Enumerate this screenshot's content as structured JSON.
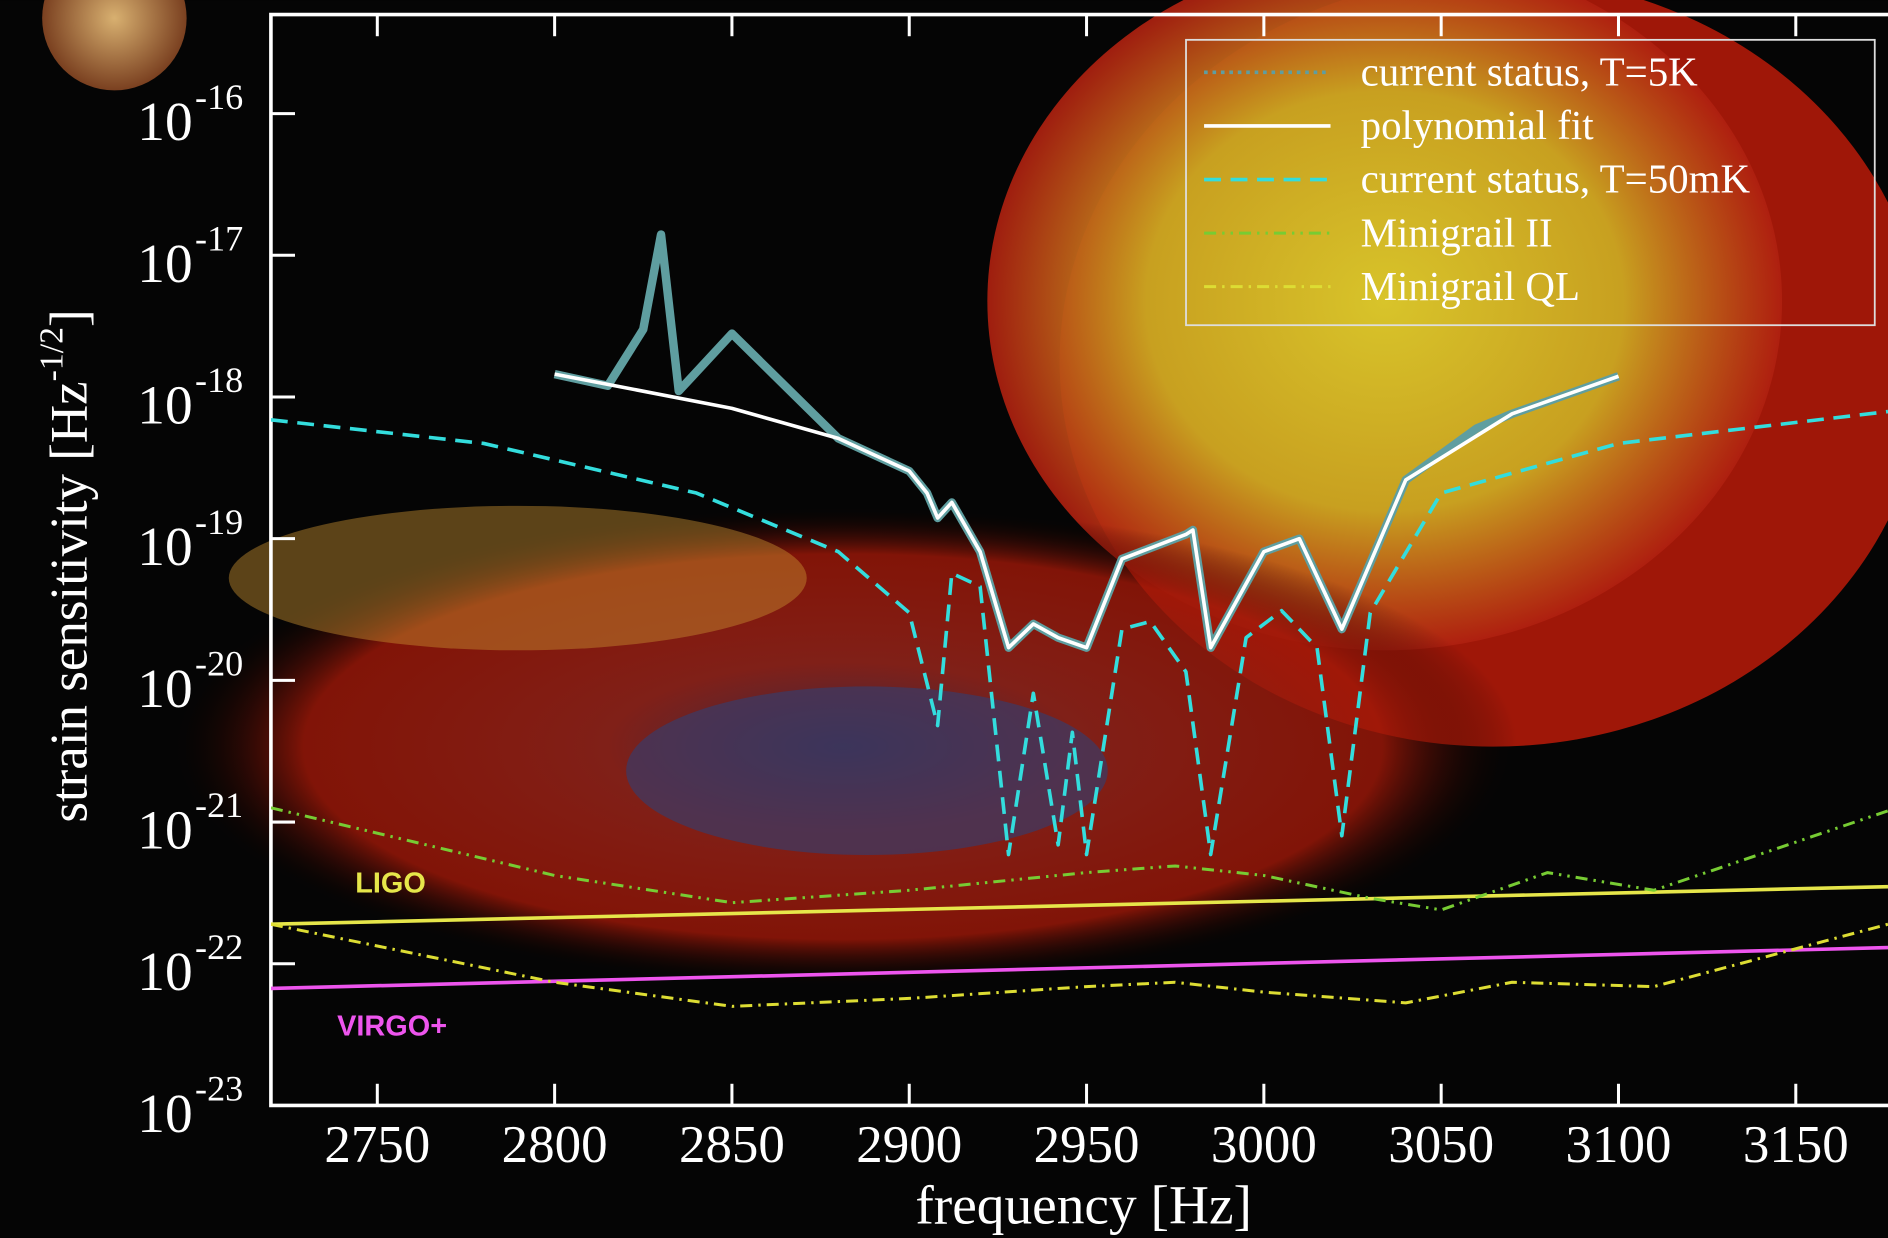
{
  "chart_data": {
    "type": "line",
    "y_label": {
      "text": "strain sensitivity [Hz",
      "exponent": "-1/2",
      "suffix": "]"
    },
    "x_label": "frequency [Hz]",
    "xlim": [
      2720,
      3176
    ],
    "xticks": [
      2750,
      2800,
      2850,
      2900,
      2950,
      3000,
      3050,
      3100,
      3150
    ],
    "ylim": [
      1e-23,
      5e-16
    ],
    "log_y": true,
    "yticks": [
      {
        "value": 1e-16,
        "label": "10",
        "exponent": "-16"
      },
      {
        "value": 1e-17,
        "label": "10",
        "exponent": "-17"
      },
      {
        "value": 1e-18,
        "label": "10",
        "exponent": "-18"
      },
      {
        "value": 1e-19,
        "label": "10",
        "exponent": "-19"
      },
      {
        "value": 1e-20,
        "label": "10",
        "exponent": "-20"
      },
      {
        "value": 1e-21,
        "label": "10",
        "exponent": "-21"
      },
      {
        "value": 1e-22,
        "label": "10",
        "exponent": "-22"
      },
      {
        "value": 1e-23,
        "label": "10",
        "exponent": "-23"
      }
    ],
    "legend": "top-right",
    "series": [
      {
        "name": "current status, T=5K",
        "color": "#5f9ea0",
        "dash": "3,4",
        "width": 7,
        "x": [
          2800,
          2815,
          2825,
          2830,
          2835,
          2850,
          2880,
          2900,
          2905,
          2908,
          2912,
          2920,
          2928,
          2935,
          2942,
          2950,
          2960,
          2978,
          2980,
          2985,
          3000,
          3010,
          3022,
          3040,
          3060,
          3070,
          3100
        ],
        "values": [
          1.45e-18,
          1.2e-18,
          3e-18,
          1.4e-17,
          1.1e-18,
          2.8e-18,
          5.1e-19,
          3e-19,
          2.1e-19,
          1.4e-19,
          1.8e-19,
          8.1e-20,
          1.7e-20,
          2.5e-20,
          2e-20,
          1.7e-20,
          7.2e-20,
          1.07e-19,
          1.15e-19,
          1.7e-20,
          8.1e-20,
          1e-19,
          2.3e-20,
          2.6e-19,
          6e-19,
          7.6e-19,
          1.4e-18
        ]
      },
      {
        "name": "polynomial fit",
        "color": "#ffffff",
        "dash": "none",
        "width": 3,
        "x": [
          2800,
          2850,
          2880,
          2900,
          2905,
          2908,
          2912,
          2920,
          2928,
          2935,
          2942,
          2950,
          2960,
          2978,
          2980,
          2985,
          3000,
          3010,
          3022,
          3040,
          3070,
          3100
        ],
        "values": [
          1.45e-18,
          8.3e-19,
          5.1e-19,
          3e-19,
          2.1e-19,
          1.4e-19,
          1.8e-19,
          8.1e-20,
          1.7e-20,
          2.5e-20,
          2e-20,
          1.7e-20,
          7.2e-20,
          1.07e-19,
          1.15e-19,
          1.7e-20,
          8.1e-20,
          1e-19,
          2.3e-20,
          2.6e-19,
          7.6e-19,
          1.4e-18
        ]
      },
      {
        "name": "current status, T=50mK",
        "color": "#33dddd",
        "dash": "14,8",
        "width": 3,
        "x": [
          2720,
          2780,
          2840,
          2880,
          2900,
          2908,
          2912,
          2920,
          2928,
          2935,
          2942,
          2946,
          2950,
          2960,
          2968,
          2978,
          2985,
          2995,
          3005,
          3015,
          3022,
          3030,
          3050,
          3100,
          3176
        ],
        "values": [
          6.9e-19,
          4.7e-19,
          2.1e-19,
          8.1e-20,
          3e-20,
          4.8e-21,
          5.7e-20,
          4.6e-20,
          5.9e-22,
          8.1e-21,
          6.9e-22,
          4.3e-21,
          5.9e-22,
          2.3e-20,
          2.6e-20,
          1.15e-20,
          5.9e-22,
          2e-20,
          3.1e-20,
          1.7e-20,
          8e-22,
          3e-20,
          2.1e-19,
          4.7e-19,
          7.9e-19
        ]
      },
      {
        "name": "Minigrail II",
        "color": "#77cc33",
        "dash": "10,5,2,5,2,5",
        "width": 2.5,
        "x": [
          2720,
          2800,
          2850,
          2900,
          2950,
          2975,
          3000,
          3030,
          3050,
          3080,
          3110,
          3176
        ],
        "values": [
          1.26e-21,
          4.2e-22,
          2.7e-22,
          3.3e-22,
          4.4e-22,
          4.9e-22,
          4.2e-22,
          2.9e-22,
          2.4e-22,
          4.4e-22,
          3.3e-22,
          1.2e-21
        ]
      },
      {
        "name": "Minigrail QL",
        "color": "#dddd33",
        "dash": "10,5,2,5",
        "width": 2.5,
        "x": [
          2720,
          2800,
          2850,
          2900,
          2950,
          2975,
          3000,
          3040,
          3070,
          3110,
          3176
        ],
        "values": [
          1.9e-22,
          7.4e-23,
          5e-23,
          5.7e-23,
          6.9e-23,
          7.4e-23,
          6.3e-23,
          5.3e-23,
          7.4e-23,
          6.9e-23,
          1.9e-22
        ]
      }
    ],
    "reference_lines": [
      {
        "text": "LIGO",
        "color": "#e6e64a",
        "x": [
          2720,
          3176
        ],
        "values": [
          1.9e-22,
          3.5e-22
        ]
      },
      {
        "text": "VIRGO+",
        "color": "#ee55ee",
        "x": [
          2720,
          3176
        ],
        "values": [
          6.7e-23,
          1.3e-22
        ]
      }
    ]
  }
}
